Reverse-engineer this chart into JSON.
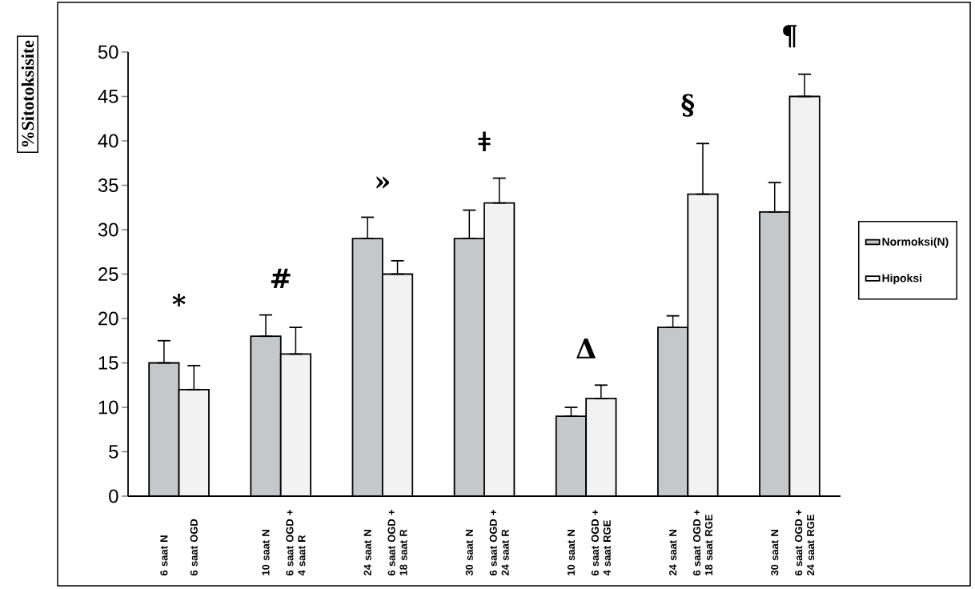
{
  "chart_data": {
    "type": "bar",
    "ylabel": "%Sitotoksisite",
    "categories": [
      "6 saat N",
      "6 saat OGD",
      "10 saat N",
      "6 saat OGD + 4 saat R",
      "24 saat N",
      "6 saat OGD + 18 saat R",
      "30 saat N",
      "6 saat OGD + 24 saat R",
      "10 saat N",
      "6 saat OGD + 4 saat RGE",
      "24 saat N",
      "6 saat OGD + 18 saat RGE",
      "30 saat N",
      "6 saat OGD + 24 saat RGE"
    ],
    "series": [
      {
        "name": "Normoksi(N)",
        "color": "#c6c7c9",
        "values": [
          15,
          null,
          18,
          null,
          29,
          null,
          29,
          null,
          9,
          null,
          19,
          null,
          32,
          null
        ],
        "errors": [
          [
            15,
            17.5
          ],
          null,
          [
            18,
            20.4
          ],
          null,
          [
            29,
            31.4
          ],
          null,
          [
            29,
            32.2
          ],
          null,
          [
            9,
            10
          ],
          null,
          [
            19,
            20.3
          ],
          null,
          [
            32,
            35.3
          ],
          null
        ]
      },
      {
        "name": "Hipoksi",
        "color": "#f2f2f2",
        "values": [
          null,
          12,
          null,
          16,
          null,
          25,
          null,
          33,
          null,
          11,
          null,
          34,
          null,
          45
        ],
        "errors": [
          null,
          [
            12,
            14.7
          ],
          null,
          [
            16,
            19
          ],
          null,
          [
            25,
            26.5
          ],
          null,
          [
            33,
            35.8
          ],
          null,
          [
            11,
            12.5
          ],
          null,
          [
            34,
            39.7
          ],
          null,
          [
            45,
            47.5
          ]
        ]
      }
    ],
    "ylim": [
      0,
      50
    ],
    "yticks": [
      0,
      5,
      10,
      15,
      20,
      25,
      30,
      35,
      40,
      45,
      50
    ],
    "grid": false,
    "legend": "right",
    "annotations": [
      "*",
      "#",
      "»",
      "ǂ",
      "Δ",
      "§",
      "¶"
    ]
  }
}
